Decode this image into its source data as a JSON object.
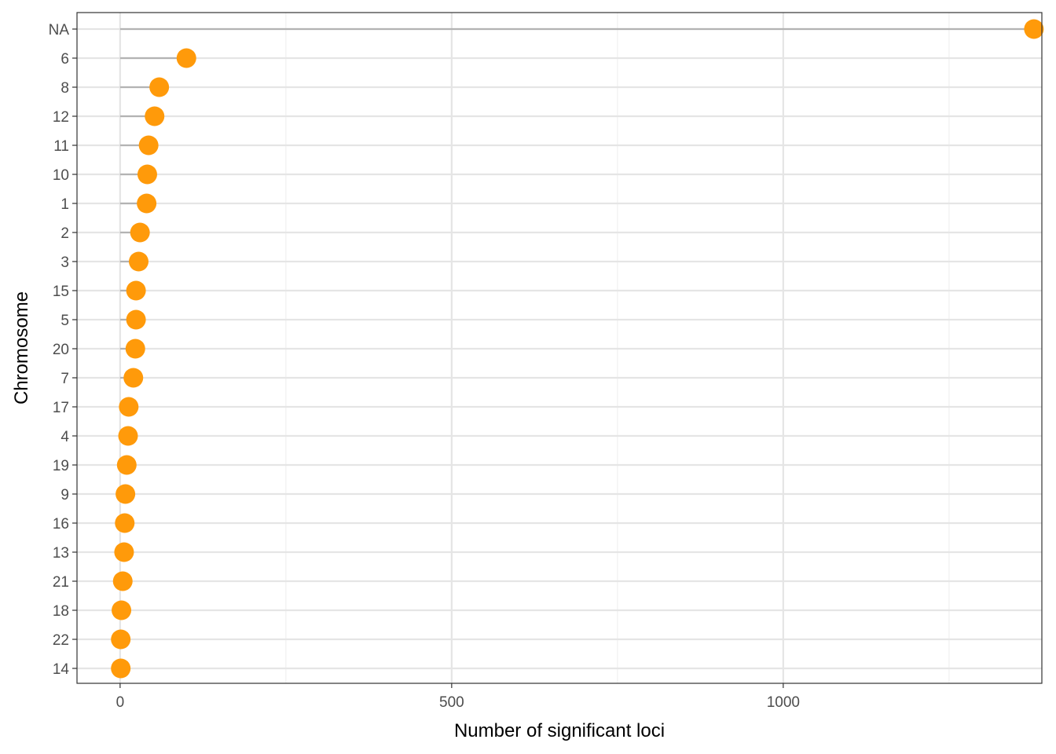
{
  "chart_data": {
    "type": "lollipop",
    "title": "",
    "xlabel": "Number of significant loci",
    "ylabel": "Chromosome",
    "xlim": [
      -65,
      1390
    ],
    "x_ticks": [
      0,
      500,
      1000
    ],
    "x_tick_labels": [
      "0",
      "500",
      "1000"
    ],
    "x_minor_ticks": [
      250,
      750,
      1250
    ],
    "grid": true,
    "categories": [
      "NA",
      "6",
      "8",
      "12",
      "11",
      "10",
      "1",
      "2",
      "3",
      "15",
      "5",
      "20",
      "7",
      "17",
      "4",
      "19",
      "9",
      "16",
      "13",
      "21",
      "18",
      "22",
      "14"
    ],
    "values": [
      1378,
      100,
      59,
      52,
      43,
      41,
      40,
      30,
      28,
      24,
      24,
      23,
      20,
      13,
      12,
      10,
      8,
      7,
      6,
      4,
      2,
      1,
      1
    ],
    "colors": {
      "point": "#FF9A0A",
      "segment": "#B3B3B3",
      "grid_major": "#E5E5E5",
      "grid_minor": "#F0F0F0",
      "border": "#333333"
    }
  }
}
